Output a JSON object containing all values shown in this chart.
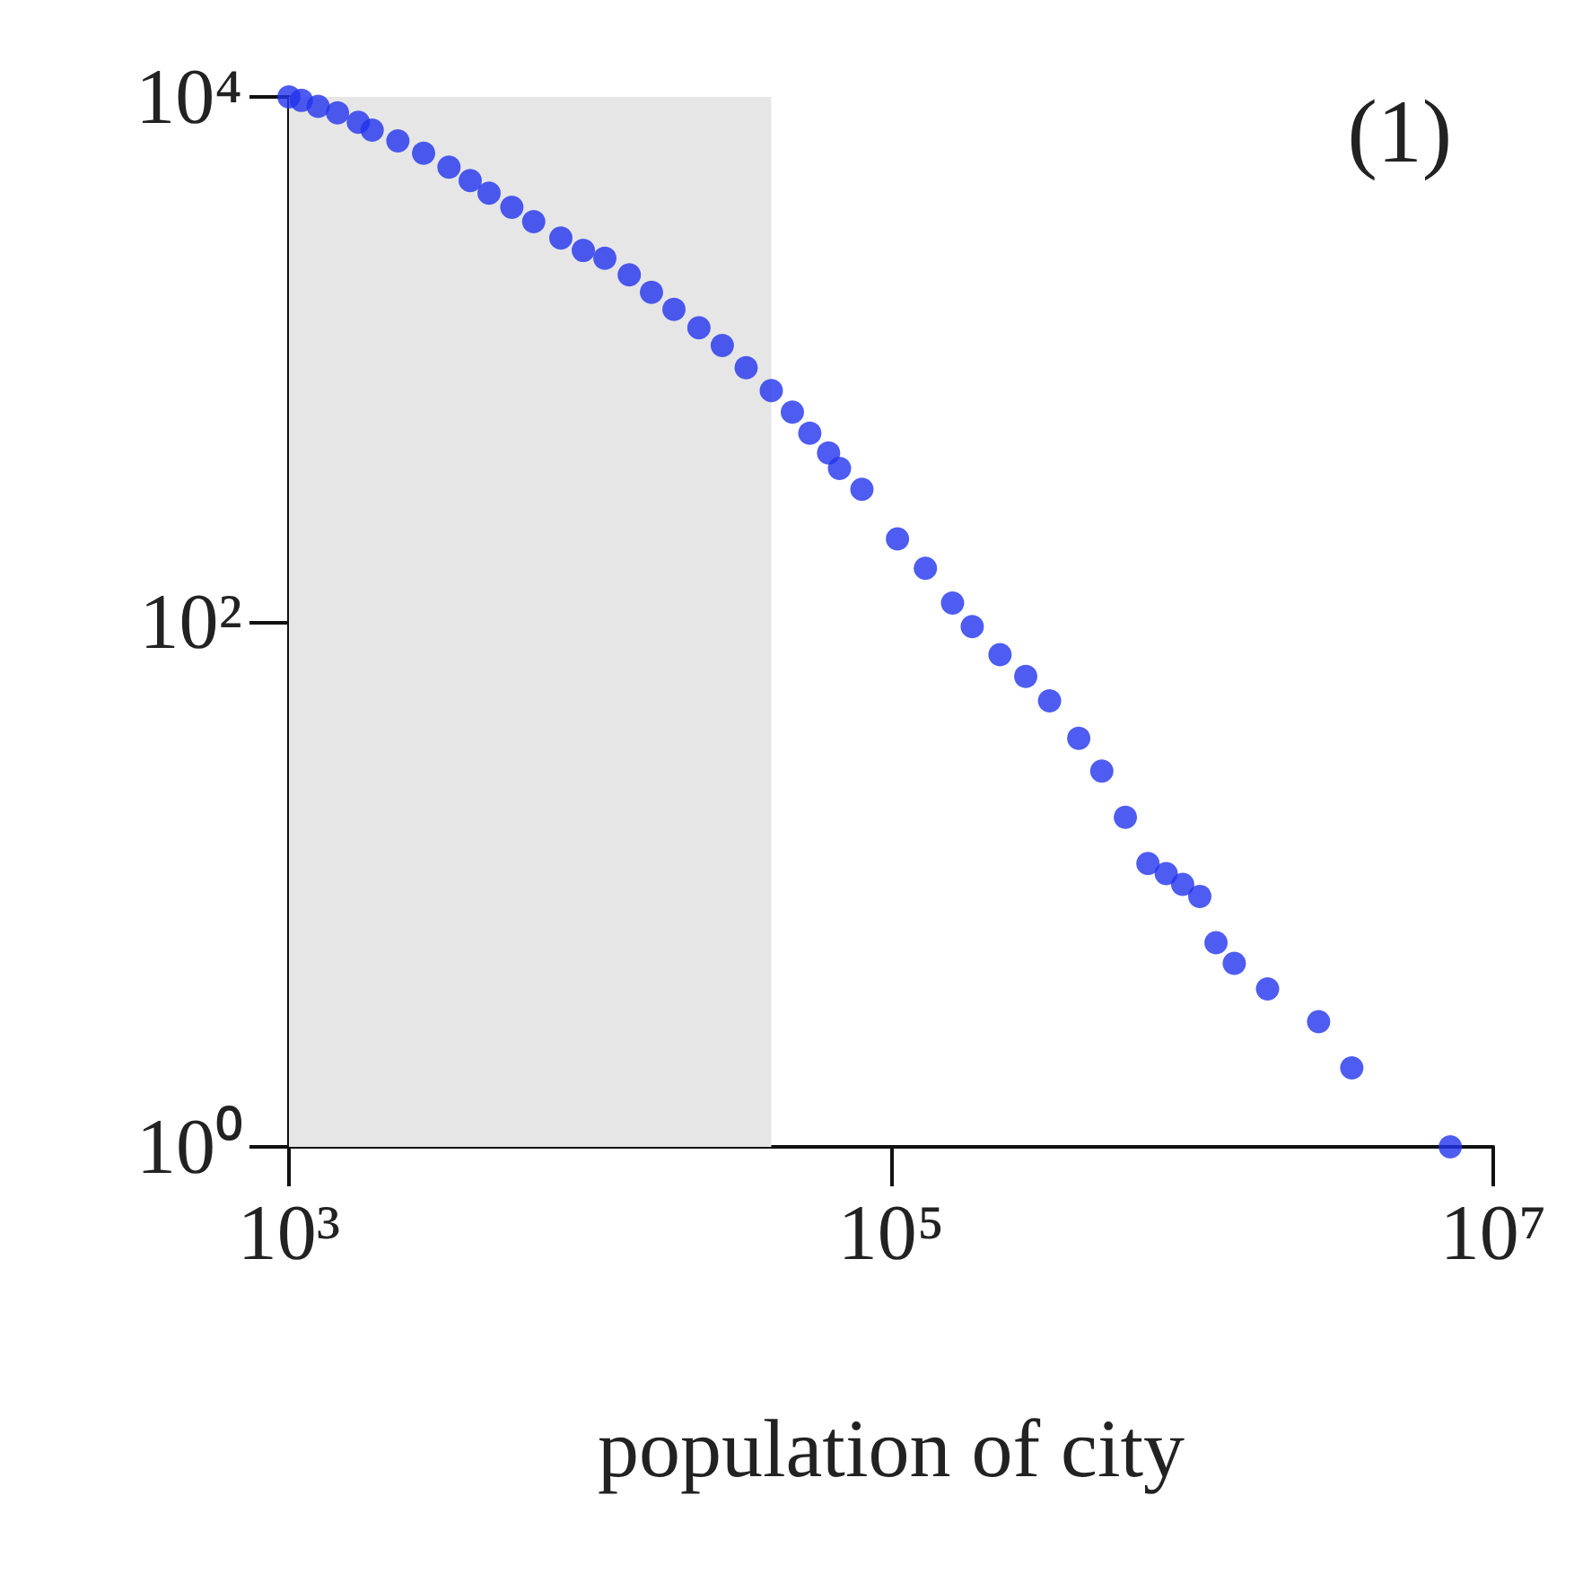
{
  "chart_data": {
    "type": "scatter",
    "xlabel": "population of city",
    "annotations": [
      "(1)"
    ],
    "log": "xy",
    "marker": "circle",
    "grid": false,
    "xlim": [
      1000,
      10000000
    ],
    "xticks": [
      {
        "value": 1000,
        "label": "10³"
      },
      {
        "value": 100000,
        "label": "10⁵"
      },
      {
        "value": 10000000,
        "label": "10⁷"
      }
    ],
    "ylim": [
      1,
      10000
    ],
    "yticks": [
      {
        "value": 1,
        "label": "10⁰"
      },
      {
        "value": 100,
        "label": "10²"
      },
      {
        "value": 10000,
        "label": "10⁴"
      }
    ],
    "bands": [
      {
        "axis": "x",
        "from": 1000,
        "to": 40000,
        "label": null,
        "color": "#e6e6e6"
      }
    ],
    "series": [
      {
        "color": "#2233ee",
        "x": [
          1000,
          1100,
          1250,
          1450,
          1700,
          1890,
          2300,
          2800,
          3400,
          4000,
          4620,
          5500,
          6500,
          8000,
          9500,
          11200,
          13500,
          16000,
          19000,
          23000,
          27500,
          33000,
          40000,
          47000,
          53700,
          62000,
          67400,
          80000,
          105000,
          130000,
          160000,
          186000,
          230000,
          280000,
          336000,
          420000,
          501000,
          600000,
          713000,
          820000,
          930000,
          1060000,
          1200000,
          1380000,
          1780000,
          2630000,
          3390000,
          7200000
        ],
        "values": [
          10000,
          9700,
          9200,
          8700,
          8000,
          7470,
          6800,
          6100,
          5400,
          4800,
          4300,
          3800,
          3350,
          2900,
          2600,
          2430,
          2100,
          1800,
          1550,
          1320,
          1130,
          930,
          760,
          630,
          523,
          440,
          384,
          320,
          207,
          160,
          118,
          96,
          75,
          62,
          50,
          36,
          27,
          18,
          12,
          11,
          10,
          9,
          6,
          5,
          4,
          3,
          2,
          1
        ]
      }
    ]
  }
}
